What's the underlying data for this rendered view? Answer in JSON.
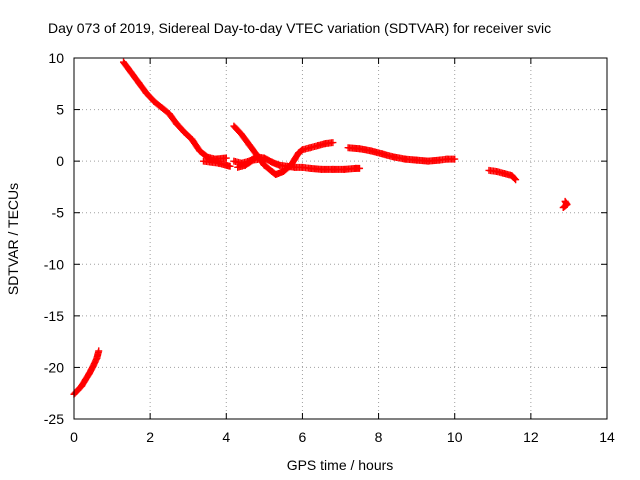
{
  "chart_data": {
    "type": "scatter",
    "title": "Day 073 of 2019, Sidereal Day-to-day VTEC variation (SDTVAR) for receiver svic",
    "xlabel": "GPS time / hours",
    "ylabel": "SDTVAR / TECUs",
    "xlim": [
      0,
      14
    ],
    "ylim": [
      -25,
      10
    ],
    "xticks": [
      "0",
      "2",
      "4",
      "6",
      "8",
      "10",
      "12",
      "14"
    ],
    "yticks": [
      "10",
      "5",
      "0",
      "-5",
      "-10",
      "-15",
      "-20",
      "-25"
    ],
    "grid": true,
    "legend": "none",
    "marker": "plus",
    "color": "#ff0000",
    "segments": [
      [
        [
          0.0,
          -22.6
        ],
        [
          0.1,
          -22.2
        ],
        [
          0.2,
          -21.8
        ],
        [
          0.3,
          -21.2
        ],
        [
          0.4,
          -20.6
        ],
        [
          0.5,
          -19.9
        ],
        [
          0.6,
          -19.1
        ],
        [
          0.65,
          -18.4
        ]
      ],
      [
        [
          1.3,
          9.6
        ],
        [
          1.5,
          8.6
        ],
        [
          1.7,
          7.6
        ],
        [
          1.9,
          6.6
        ],
        [
          2.1,
          5.8
        ],
        [
          2.3,
          5.2
        ],
        [
          2.5,
          4.6
        ],
        [
          2.7,
          3.6
        ],
        [
          2.9,
          2.8
        ],
        [
          3.1,
          2.1
        ],
        [
          3.3,
          1.0
        ],
        [
          3.5,
          0.4
        ],
        [
          3.7,
          0.2
        ],
        [
          4.0,
          0.3
        ]
      ],
      [
        [
          3.4,
          0.0
        ],
        [
          3.6,
          -0.1
        ],
        [
          3.8,
          -0.2
        ],
        [
          4.0,
          -0.4
        ],
        [
          4.1,
          -0.5
        ]
      ],
      [
        [
          4.2,
          3.4
        ],
        [
          4.4,
          2.6
        ],
        [
          4.6,
          1.6
        ],
        [
          4.8,
          0.6
        ],
        [
          5.0,
          -0.4
        ],
        [
          5.2,
          -1.0
        ],
        [
          5.3,
          -1.3
        ],
        [
          5.5,
          -1.0
        ],
        [
          5.7,
          -0.4
        ],
        [
          5.8,
          0.2
        ],
        [
          5.9,
          0.8
        ],
        [
          6.0,
          1.1
        ],
        [
          6.2,
          1.3
        ],
        [
          6.4,
          1.5
        ],
        [
          6.6,
          1.7
        ],
        [
          6.8,
          1.8
        ]
      ],
      [
        [
          4.2,
          0.0
        ],
        [
          4.4,
          -0.2
        ],
        [
          4.6,
          0.0
        ],
        [
          4.8,
          0.4
        ],
        [
          5.0,
          0.3
        ],
        [
          5.2,
          -0.1
        ],
        [
          5.4,
          -0.4
        ],
        [
          5.6,
          -0.5
        ],
        [
          5.8,
          -0.6
        ],
        [
          6.0,
          -0.6
        ],
        [
          6.2,
          -0.7
        ],
        [
          6.5,
          -0.8
        ],
        [
          6.8,
          -0.8
        ],
        [
          7.1,
          -0.8
        ],
        [
          7.4,
          -0.7
        ],
        [
          7.5,
          -0.7
        ]
      ],
      [
        [
          4.3,
          -0.6
        ],
        [
          4.5,
          -0.4
        ],
        [
          4.7,
          0.1
        ],
        [
          4.9,
          0.2
        ]
      ],
      [
        [
          7.2,
          1.3
        ],
        [
          7.5,
          1.2
        ],
        [
          7.8,
          1.0
        ],
        [
          8.1,
          0.7
        ],
        [
          8.4,
          0.4
        ],
        [
          8.7,
          0.2
        ],
        [
          9.0,
          0.1
        ],
        [
          9.3,
          0.0
        ],
        [
          9.6,
          0.1
        ],
        [
          9.8,
          0.2
        ],
        [
          10.0,
          0.2
        ]
      ],
      [
        [
          10.9,
          -0.9
        ],
        [
          11.1,
          -1.0
        ],
        [
          11.3,
          -1.2
        ],
        [
          11.5,
          -1.4
        ],
        [
          11.6,
          -1.8
        ]
      ],
      [
        [
          12.9,
          -3.9
        ],
        [
          12.95,
          -4.2
        ],
        [
          12.85,
          -4.5
        ]
      ]
    ]
  }
}
